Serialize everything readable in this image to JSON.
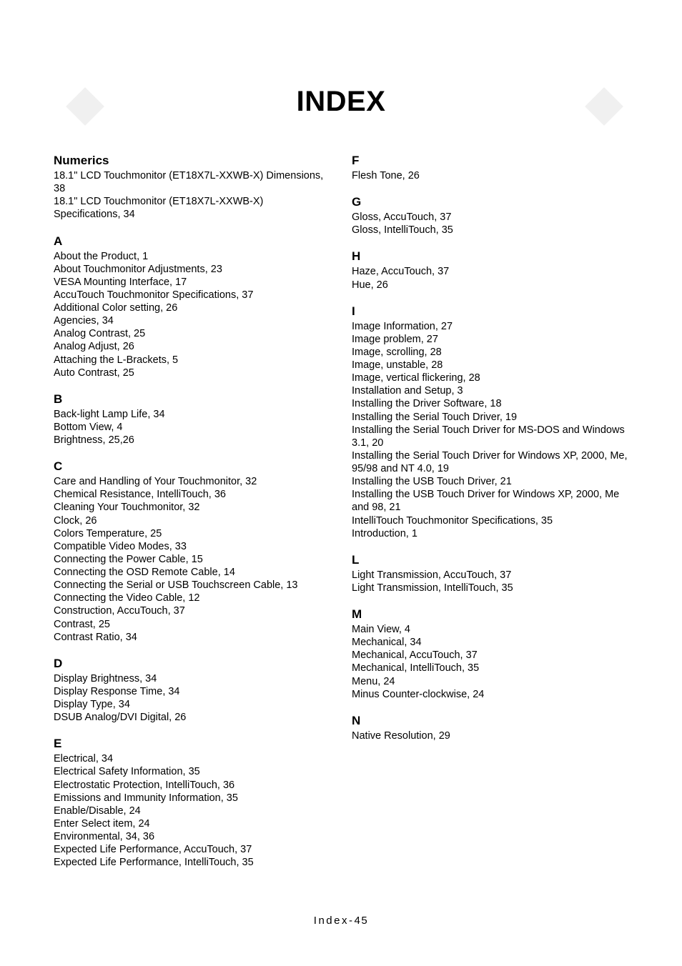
{
  "title": "INDEX",
  "footer_label": "Index-",
  "footer_page": "45",
  "colors": {
    "background": "#ffffff",
    "text": "#000000",
    "decor": "#f0f0f0"
  },
  "left": [
    {
      "head": "Numerics",
      "entries": [
        "18.1\" LCD Touchmonitor (ET18X7L-XXWB-X) Dimensions, 38",
        "18.1\" LCD Touchmonitor (ET18X7L-XXWB-X) Specifications, 34"
      ]
    },
    {
      "head": "A",
      "entries": [
        "About the Product, 1",
        "About Touchmonitor Adjustments, 23",
        "VESA Mounting Interface, 17",
        "AccuTouch Touchmonitor Specifications, 37",
        "Additional Color setting, 26",
        "Agencies, 34",
        "Analog Contrast, 25",
        "Analog Adjust, 26",
        "Attaching the L-Brackets, 5",
        "Auto Contrast, 25"
      ]
    },
    {
      "head": "B",
      "entries": [
        "Back-light Lamp Life, 34",
        "Bottom View, 4",
        "Brightness, 25,26"
      ]
    },
    {
      "head": "C",
      "entries": [
        "Care and Handling of Your Touchmonitor, 32",
        "Chemical Resistance, IntelliTouch, 36",
        "Cleaning Your Touchmonitor, 32",
        "Clock, 26",
        "Colors Temperature, 25",
        "Compatible Video Modes, 33",
        "Connecting the Power Cable, 15",
        "Connecting the OSD Remote Cable, 14",
        "Connecting the Serial or USB Touchscreen Cable, 13",
        "Connecting the Video Cable, 12",
        "Construction, AccuTouch, 37",
        "Contrast, 25",
        "Contrast Ratio, 34"
      ]
    },
    {
      "head": "D",
      "entries": [
        "Display Brightness, 34",
        "Display Response Time, 34",
        "Display Type, 34",
        "DSUB Analog/DVI Digital, 26"
      ]
    },
    {
      "head": "E",
      "entries": [
        "Electrical, 34",
        "Electrical Safety Information, 35",
        "Electrostatic Protection, IntelliTouch, 36",
        "Emissions and Immunity Information, 35",
        "Enable/Disable, 24",
        "Enter Select item, 24",
        "Environmental, 34, 36",
        "Expected Life Performance, AccuTouch, 37",
        "Expected Life Performance, IntelliTouch, 35"
      ]
    }
  ],
  "right": [
    {
      "head": "F",
      "entries": [
        "Flesh Tone, 26"
      ]
    },
    {
      "head": "G",
      "entries": [
        "Gloss, AccuTouch, 37",
        "Gloss, IntelliTouch, 35"
      ]
    },
    {
      "head": "H",
      "entries": [
        "Haze, AccuTouch, 37",
        "Hue, 26"
      ]
    },
    {
      "head": "I",
      "entries": [
        "Image Information, 27",
        "Image problem, 27",
        "Image, scrolling, 28",
        "Image, unstable, 28",
        "Image, vertical flickering, 28",
        "Installation and Setup, 3",
        "Installing the Driver Software, 18",
        "Installing the Serial Touch Driver, 19",
        "Installing the Serial Touch Driver for MS-DOS and Windows 3.1, 20",
        "Installing the Serial Touch Driver for Windows XP, 2000, Me, 95/98 and NT 4.0, 19",
        "Installing the USB Touch Driver, 21",
        "Installing the USB Touch Driver for Windows XP, 2000, Me and 98, 21",
        "IntelliTouch Touchmonitor Specifications, 35",
        "Introduction, 1"
      ]
    },
    {
      "head": "L",
      "entries": [
        "Light Transmission, AccuTouch, 37",
        "Light Transmission, IntelliTouch, 35"
      ]
    },
    {
      "head": "M",
      "entries": [
        "Main View, 4",
        "Mechanical, 34",
        "Mechanical, AccuTouch, 37",
        "Mechanical, IntelliTouch, 35",
        "Menu, 24",
        "Minus Counter-clockwise, 24"
      ]
    },
    {
      "head": "N",
      "entries": [
        "Native Resolution, 29"
      ]
    }
  ]
}
